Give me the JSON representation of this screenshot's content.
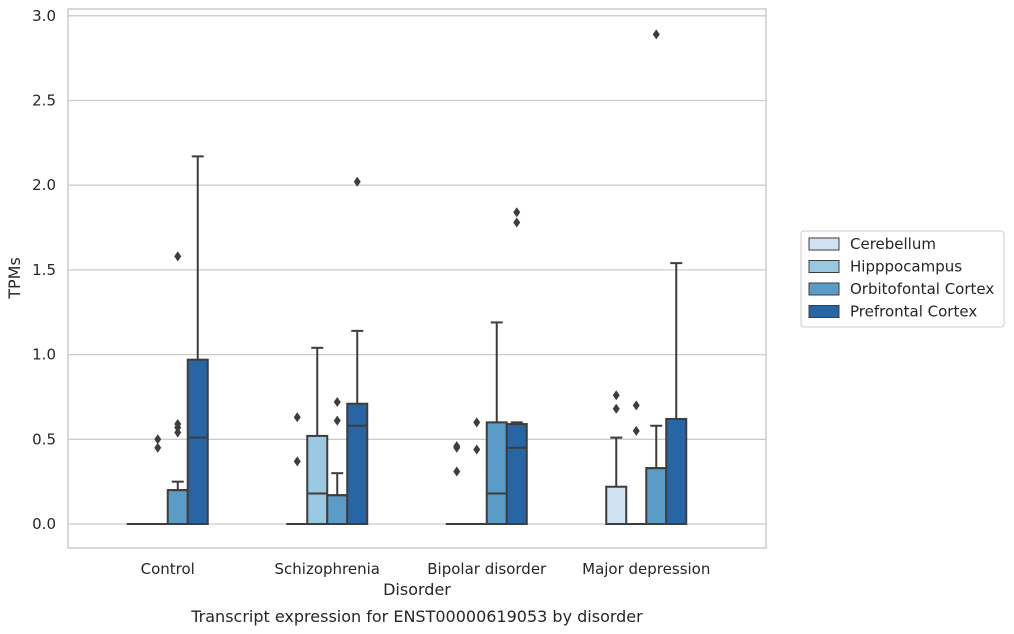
{
  "chart_data": {
    "type": "box",
    "xlabel": "Disorder",
    "ylabel": "TPMs",
    "caption": "Transcript expression for ENST00000619053 by disorder",
    "ylim": [
      -0.14,
      3.04
    ],
    "yticks": [
      "0.0",
      "0.5",
      "1.0",
      "1.5",
      "2.0",
      "2.5",
      "3.0"
    ],
    "grid": "horizontal",
    "legend_position": "right",
    "categories": [
      "Control",
      "Schizophrenia",
      "Bipolar disorder",
      "Major depression"
    ],
    "series": [
      {
        "name": "Cerebellum",
        "color": "#d1e2f3",
        "boxes": [
          {
            "min": 0,
            "q1": 0,
            "median": 0,
            "q3": 0,
            "max": 0,
            "outliers": []
          },
          {
            "min": 0,
            "q1": 0,
            "median": 0,
            "q3": 0,
            "max": 0,
            "outliers": [
              0.63,
              0.37
            ]
          },
          {
            "min": 0,
            "q1": 0,
            "median": 0,
            "q3": 0,
            "max": 0,
            "outliers": [
              0.46,
              0.45,
              0.31
            ]
          },
          {
            "min": 0,
            "q1": 0,
            "median": 0,
            "q3": 0.22,
            "max": 0.51,
            "outliers": [
              0.76,
              0.68
            ]
          }
        ]
      },
      {
        "name": "Hipppocampus",
        "color": "#9ac8e0",
        "boxes": [
          {
            "min": 0,
            "q1": 0,
            "median": 0,
            "q3": 0,
            "max": 0,
            "outliers": [
              0.5,
              0.45
            ]
          },
          {
            "min": 0,
            "q1": 0,
            "median": 0.18,
            "q3": 0.52,
            "max": 1.04,
            "outliers": []
          },
          {
            "min": 0,
            "q1": 0,
            "median": 0,
            "q3": 0,
            "max": 0,
            "outliers": [
              0.6,
              0.44
            ]
          },
          {
            "min": 0,
            "q1": 0,
            "median": 0,
            "q3": 0,
            "max": 0,
            "outliers": [
              0.7,
              0.55
            ]
          }
        ]
      },
      {
        "name": "Orbitofontal Cortex",
        "color": "#5a9bc8",
        "boxes": [
          {
            "min": 0,
            "q1": 0,
            "median": 0.2,
            "q3": 0.2,
            "max": 0.25,
            "outliers": [
              0.59,
              1.58,
              0.57,
              0.54
            ]
          },
          {
            "min": 0,
            "q1": 0,
            "median": 0.17,
            "q3": 0.17,
            "max": 0.3,
            "outliers": [
              0.72,
              0.61
            ]
          },
          {
            "min": 0,
            "q1": 0,
            "median": 0.18,
            "q3": 0.6,
            "max": 1.19,
            "outliers": []
          },
          {
            "min": 0,
            "q1": 0,
            "median": 0.33,
            "q3": 0.33,
            "max": 0.58,
            "outliers": [
              2.89
            ]
          }
        ]
      },
      {
        "name": "Prefrontal Cortex",
        "color": "#2865a4",
        "boxes": [
          {
            "min": 0,
            "q1": 0,
            "median": 0.51,
            "q3": 0.97,
            "max": 2.17,
            "outliers": []
          },
          {
            "min": 0,
            "q1": 0,
            "median": 0.58,
            "q3": 0.71,
            "max": 1.14,
            "outliers": [
              2.02
            ]
          },
          {
            "min": 0,
            "q1": 0,
            "median": 0.45,
            "q3": 0.59,
            "max": 0.6,
            "outliers": [
              1.84,
              1.78
            ]
          },
          {
            "min": 0,
            "q1": 0,
            "median": 0.62,
            "q3": 0.62,
            "max": 1.54,
            "outliers": []
          }
        ]
      }
    ]
  }
}
